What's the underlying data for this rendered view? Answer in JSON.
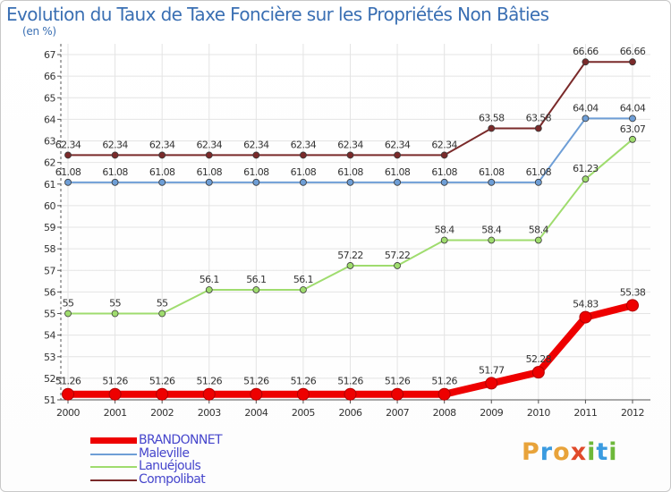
{
  "title": "Evolution du Taux de Taxe Foncière sur les Propriétés Non Bâties",
  "unit_label": "(en %)",
  "brand": {
    "text": "Proxiti",
    "letters": [
      {
        "char": "P",
        "color": "#e8a33a"
      },
      {
        "char": "r",
        "color": "#3a9be0"
      },
      {
        "char": "o",
        "color": "#e8a33a"
      },
      {
        "char": "x",
        "color": "#e04a2a"
      },
      {
        "char": "i",
        "color": "#6db83a"
      },
      {
        "char": "t",
        "color": "#3a9be0"
      },
      {
        "char": "i",
        "color": "#6db83a"
      }
    ]
  },
  "chart_data": {
    "type": "line",
    "title": "Evolution du Taux de Taxe Foncière sur les Propriétés Non Bâties",
    "ylabel": "(en %)",
    "xlabel": "",
    "ylim": [
      51,
      67
    ],
    "y_ticks": [
      51,
      52,
      53,
      54,
      55,
      56,
      57,
      58,
      59,
      60,
      61,
      62,
      63,
      64,
      65,
      66,
      67
    ],
    "categories": [
      "2000",
      "2001",
      "2002",
      "2003",
      "2004",
      "2005",
      "2006",
      "2007",
      "2008",
      "2009",
      "2010",
      "2011",
      "2012"
    ],
    "grid": true,
    "legend_position": "bottom-left",
    "series": [
      {
        "name": "BRANDONNET",
        "color": "#ee0000",
        "values": [
          51.26,
          51.26,
          51.26,
          51.26,
          51.26,
          51.26,
          51.26,
          51.26,
          51.26,
          51.77,
          52.28,
          54.83,
          55.38
        ],
        "labels": [
          "51.26",
          "51.26",
          "51.26",
          "51.26",
          "51.26",
          "51.26",
          "51.26",
          "51.26",
          "51.26",
          "51.77",
          "52.28",
          "54.83",
          "55.38"
        ]
      },
      {
        "name": "Maleville",
        "color": "#6e9ed6",
        "values": [
          61.08,
          61.08,
          61.08,
          61.08,
          61.08,
          61.08,
          61.08,
          61.08,
          61.08,
          61.08,
          61.08,
          64.04,
          64.04
        ],
        "labels": [
          "61.08",
          "61.08",
          "61.08",
          "61.08",
          "61.08",
          "61.08",
          "61.08",
          "61.08",
          "61.08",
          "61.08",
          "61.08",
          "64.04",
          "64.04"
        ]
      },
      {
        "name": "Lanuéjouls",
        "color": "#9fdc6e",
        "values": [
          55,
          55,
          55,
          56.1,
          56.1,
          56.1,
          57.22,
          57.22,
          58.4,
          58.4,
          58.4,
          61.23,
          63.07
        ],
        "labels": [
          "55",
          "55",
          "55",
          "56.1",
          "56.1",
          "56.1",
          "57.22",
          "57.22",
          "58.4",
          "58.4",
          "58.4",
          "61.23",
          "63.07"
        ]
      },
      {
        "name": "Compolibat",
        "color": "#7a2a2a",
        "values": [
          62.34,
          62.34,
          62.34,
          62.34,
          62.34,
          62.34,
          62.34,
          62.34,
          62.34,
          63.58,
          63.58,
          66.66,
          66.66
        ],
        "labels": [
          "62.34",
          "62.34",
          "62.34",
          "62.34",
          "62.34",
          "62.34",
          "62.34",
          "62.34",
          "62.34",
          "63.58",
          "63.58",
          "66.66",
          "66.66"
        ]
      }
    ]
  }
}
